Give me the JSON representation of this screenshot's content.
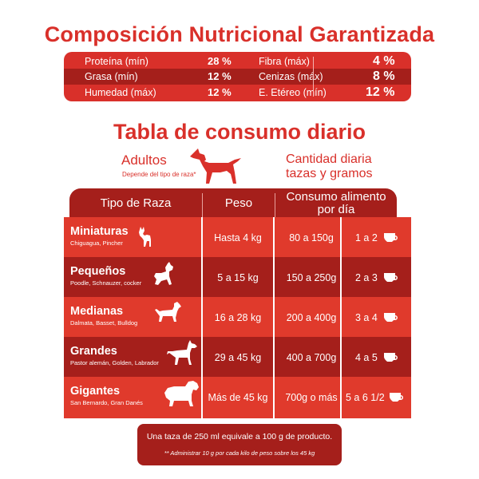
{
  "title": "Composición Nutricional Garantizada",
  "nutrition": {
    "rows": [
      {
        "l_label": "Proteína (mín)",
        "l_value": "28 %",
        "r_label": "Fibra (máx)",
        "r_value": "4 %"
      },
      {
        "l_label": "Grasa (mín)",
        "l_value": "12 %",
        "r_label": "Cenizas (máx)",
        "r_value": "8 %"
      },
      {
        "l_label": "Humedad (máx)",
        "l_value": "12 %",
        "r_label": "E. Etéreo (mín)",
        "r_value": "12 %"
      }
    ]
  },
  "subtitle": "Tabla de consumo diario",
  "adultos": {
    "label": "Adultos",
    "note": "Depende del tipo de raza*",
    "icon": "dog-silhouette-icon"
  },
  "cantidad": {
    "line1": "Cantidad diaria",
    "line2": "tazas y gramos"
  },
  "table": {
    "headers": {
      "raza": "Tipo de Raza",
      "peso": "Peso",
      "consumo_l1": "Consumo alimento",
      "consumo_l2": "por día"
    },
    "rows": [
      {
        "name": "Miniaturas",
        "breeds": "Chiguagua, Pincher",
        "peso": "Hasta 4 kg",
        "consumo": "80 a 150g",
        "tazas": "1 a 2",
        "icon": "chihuahua-icon"
      },
      {
        "name": "Pequeños",
        "breeds": "Poodle, Schnauzer, cocker",
        "peso": "5 a 15 kg",
        "consumo": "150 a 250g",
        "tazas": "2 a 3",
        "icon": "schnauzer-icon"
      },
      {
        "name": "Medianas",
        "breeds": "Dalmata, Basset, Bulldog",
        "peso": "16 a 28 kg",
        "consumo": "200 a 400g",
        "tazas": "3 a 4",
        "icon": "medium-dog-icon"
      },
      {
        "name": "Grandes",
        "breeds": "Pastor alemán, Golden, Labrador",
        "peso": "29 a 45 kg",
        "consumo": "400 a 700g",
        "tazas": "4 a 5",
        "icon": "large-dog-icon"
      },
      {
        "name": "Gigantes",
        "breeds": "San Bernardo, Gran Danés",
        "peso": "Más de 45 kg",
        "consumo": "700g o más",
        "tazas": "5 a 6 1/2",
        "icon": "saint-bernard-icon"
      }
    ]
  },
  "footer": {
    "line1": "Una taza de 250 ml equivale a 100 g de producto.",
    "line2": "** Administrar 10 g por cada kilo de peso sobre los 45 kg"
  },
  "colors": {
    "primary_red": "#d9302a",
    "dark_red": "#a51f1b",
    "light_red": "#e03a2c"
  }
}
